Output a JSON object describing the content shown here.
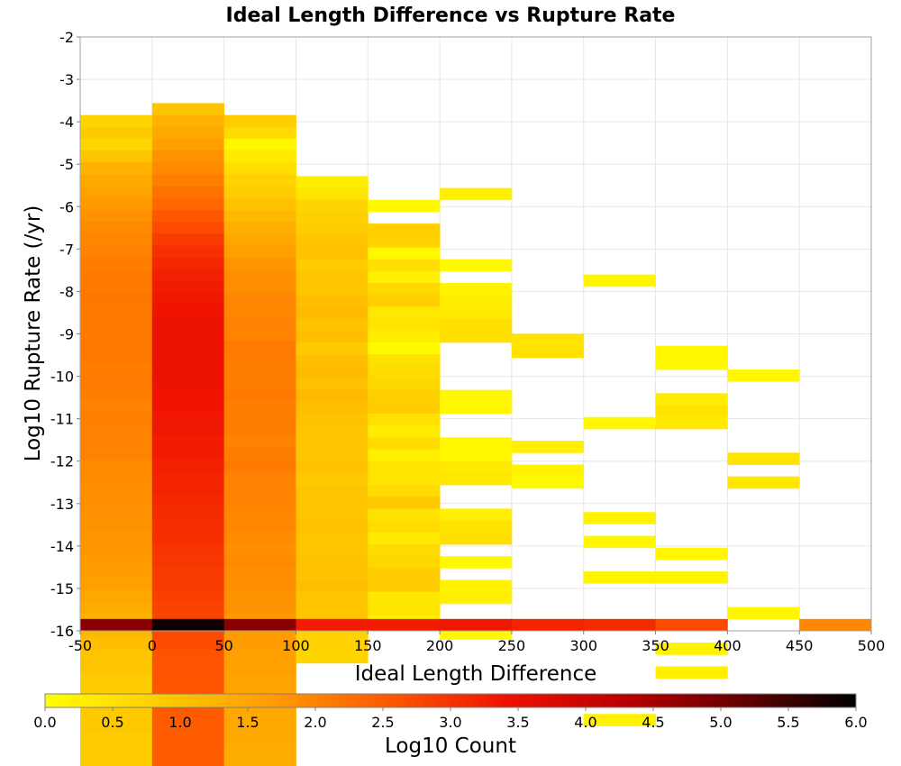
{
  "chart_data": {
    "type": "heatmap",
    "title": "Ideal Length Difference vs Rupture Rate",
    "xlabel": "Ideal Length Difference",
    "ylabel": "Log10 Rupture Rate (/yr)",
    "xlim": [
      -50,
      500
    ],
    "ylim": [
      -16,
      -2
    ],
    "x_ticks": [
      "-50",
      "0",
      "50",
      "100",
      "150",
      "200",
      "250",
      "300",
      "350",
      "400",
      "450",
      "500"
    ],
    "y_ticks": [
      "-2",
      "-3",
      "-4",
      "-5",
      "-6",
      "-7",
      "-8",
      "-9",
      "-10",
      "-11",
      "-12",
      "-13",
      "-14",
      "-15",
      "-16"
    ],
    "grid": true,
    "x_bin_width": 50,
    "y_bin_height": 0.28,
    "colorbar": {
      "label": "Log10 Count",
      "range": [
        0,
        6
      ],
      "ticks": [
        "0.0",
        "0.5",
        "1.0",
        "1.5",
        "2.0",
        "2.5",
        "3.0",
        "3.5",
        "4.0",
        "4.5",
        "5.0",
        "5.5",
        "6.0"
      ],
      "colors": [
        "#ffff00",
        "#ffcc00",
        "#ff9900",
        "#ff5500",
        "#ee1100",
        "#bb0000",
        "#660000",
        "#000000"
      ]
    },
    "columns": [
      {
        "x0": -50,
        "y_top": -3.84,
        "values": [
          0.7,
          0.9,
          0.7,
          1.0,
          1.3,
          1.45,
          1.55,
          1.7,
          1.8,
          1.9,
          1.95,
          2.0,
          2.05,
          2.1,
          2.1,
          2.15,
          2.1,
          2.1,
          2.1,
          2.15,
          2.1,
          2.05,
          2.1,
          2.05,
          2.0,
          2.05,
          2.0,
          2.0,
          2.0,
          1.9,
          1.9,
          1.85,
          1.85,
          1.8,
          1.8,
          1.75,
          1.75,
          1.7,
          1.65,
          1.6,
          1.5,
          1.4,
          1.3,
          1.2,
          1.1,
          1.0,
          1.0,
          0.85,
          0.85,
          0.9,
          0.9,
          0.9,
          0.85,
          0.85,
          0.85
        ]
      },
      {
        "x0": 0,
        "y_top": -3.56,
        "values": [
          1.0,
          1.3,
          1.45,
          1.6,
          1.8,
          1.9,
          2.05,
          2.2,
          2.35,
          2.55,
          2.7,
          2.9,
          3.05,
          3.15,
          3.25,
          3.3,
          3.35,
          3.4,
          3.42,
          3.45,
          3.45,
          3.45,
          3.45,
          3.42,
          3.4,
          3.4,
          3.35,
          3.35,
          3.3,
          3.3,
          3.25,
          3.2,
          3.2,
          3.15,
          3.1,
          3.05,
          3.05,
          3.0,
          2.95,
          2.9,
          2.9,
          2.85,
          2.8,
          2.8,
          2.7,
          2.7,
          2.6,
          2.6,
          2.6,
          2.55,
          2.55,
          2.5,
          2.5,
          2.5,
          2.5,
          2.5
        ]
      },
      {
        "x0": 50,
        "y_top": -3.84,
        "values": [
          0.85,
          0.6,
          0.15,
          0.35,
          0.55,
          0.75,
          0.85,
          1.05,
          1.2,
          1.35,
          1.5,
          1.6,
          1.75,
          1.85,
          1.85,
          1.95,
          1.95,
          2.0,
          2.0,
          2.1,
          2.05,
          2.05,
          2.05,
          2.1,
          2.05,
          2.05,
          2.05,
          2.0,
          2.05,
          2.1,
          2.0,
          2.0,
          2.0,
          1.95,
          1.95,
          1.9,
          1.85,
          1.9,
          1.85,
          1.85,
          1.8,
          1.8,
          1.7,
          1.7,
          1.65,
          1.6,
          1.6,
          1.55,
          1.55,
          1.45,
          1.45,
          1.45,
          1.45,
          1.4,
          1.4
        ]
      },
      {
        "x0": 100,
        "y_top": -5.28,
        "values": [
          0.3,
          0.45,
          0.7,
          0.8,
          0.85,
          0.95,
          1.05,
          0.85,
          1.0,
          0.95,
          1.1,
          1.15,
          1.05,
          1.1,
          0.9,
          1.1,
          1.15,
          1.05,
          1.2,
          1.1,
          1.05,
          1.0,
          0.95,
          1.0,
          1.05,
          0.9,
          1.0,
          0.95,
          1.0,
          1.05,
          0.95,
          0.95,
          1.05,
          1.05,
          1.1,
          1.0,
          0.95,
          0.95,
          0.75,
          0.75,
          0.7
        ]
      },
      {
        "x0": 150,
        "y_top": -5.84,
        "values": [
          0.1,
          null,
          0.8,
          0.75,
          0.1,
          0.55,
          0.25,
          0.65,
          0.8,
          0.4,
          0.45,
          0.3,
          0.1,
          0.5,
          0.6,
          0.65,
          0.8,
          0.85,
          0.5,
          0.3,
          0.6,
          0.25,
          0.45,
          0.45,
          0.6,
          0.9,
          0.5,
          0.6,
          0.35,
          0.6,
          0.65,
          0.85,
          0.85,
          0.4,
          0.45,
          0.2
        ]
      },
      {
        "x0": 200,
        "y_top": -5.56,
        "values": [
          0.25,
          null,
          null,
          null,
          null,
          null,
          0.1,
          null,
          0.2,
          0.3,
          0.35,
          0.55,
          0.55,
          null,
          null,
          null,
          null,
          0.15,
          0.15,
          null,
          null,
          0.15,
          0.15,
          0.35,
          0.4,
          null,
          null,
          0.25,
          0.45,
          0.55,
          null,
          0.1,
          null,
          0.2,
          0.25,
          null,
          null,
          0.1
        ]
      },
      {
        "x0": 250,
        "y_top": -9.0,
        "values": [
          0.45,
          0.5,
          null,
          null,
          null,
          null,
          null,
          null,
          null,
          0.25,
          null,
          0.2,
          0.1
        ]
      },
      {
        "x0": 300,
        "y_top": -7.6,
        "values": [
          0.15,
          null,
          null,
          null,
          null,
          null,
          null,
          null,
          null,
          null,
          null,
          null,
          0.15,
          null,
          null,
          null,
          null,
          null,
          null,
          null,
          0.2,
          null,
          0.15,
          null,
          null,
          0.2,
          null,
          null,
          null,
          null,
          null,
          null,
          null,
          null,
          null,
          null,
          null,
          0.2
        ]
      },
      {
        "x0": 350,
        "y_top": -9.28,
        "values": [
          0.15,
          0.1,
          null,
          null,
          0.3,
          0.45,
          0.35,
          null,
          null,
          null,
          null,
          null,
          null,
          null,
          null,
          null,
          null,
          0.15,
          null,
          0.2,
          null,
          null,
          null,
          null,
          null,
          0.2,
          null,
          0.25
        ]
      },
      {
        "x0": 400,
        "y_top": -9.84,
        "values": [
          0.15,
          null,
          null,
          null,
          null,
          null,
          null,
          0.45,
          null,
          0.4,
          null,
          null,
          null,
          null,
          null,
          null,
          null,
          null,
          null,
          null,
          0.15
        ]
      },
      {
        "x0": 450,
        "y_top": -15.72,
        "values": [
          1.95
        ]
      }
    ],
    "bottom_row": {
      "y_top": -15.72,
      "values": [
        4.8,
        5.9,
        4.8,
        3.3,
        3.3,
        3.35,
        3.2,
        3.1,
        2.7
      ]
    }
  }
}
